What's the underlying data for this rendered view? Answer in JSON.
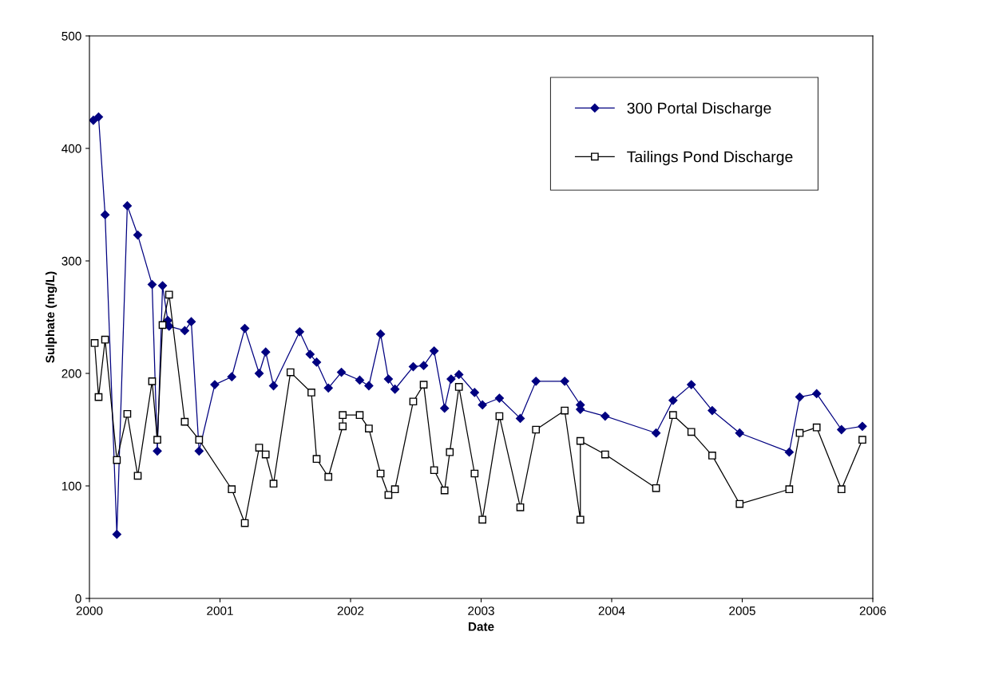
{
  "chart_data": {
    "type": "line",
    "xlabel": "Date",
    "ylabel": "Sulphate (mg/L)",
    "xlim": [
      2000,
      2006
    ],
    "xticks": [
      2000,
      2001,
      2002,
      2003,
      2004,
      2005,
      2006
    ],
    "ylim": [
      0,
      500
    ],
    "yticks": [
      0,
      100,
      200,
      300,
      400,
      500
    ],
    "grid": false,
    "legend": "top right",
    "series": [
      {
        "name": "300 Portal Discharge",
        "color": "#000080",
        "marker": "diamond",
        "x": [
          2000.03,
          2000.07,
          2000.12,
          2000.21,
          2000.29,
          2000.37,
          2000.48,
          2000.52,
          2000.56,
          2000.6,
          2000.61,
          2000.73,
          2000.78,
          2000.84,
          2000.96,
          2001.09,
          2001.19,
          2001.3,
          2001.35,
          2001.41,
          2001.61,
          2001.69,
          2001.74,
          2001.83,
          2001.93,
          2002.07,
          2002.14,
          2002.23,
          2002.29,
          2002.34,
          2002.48,
          2002.56,
          2002.64,
          2002.72,
          2002.77,
          2002.83,
          2002.95,
          2003.01,
          2003.14,
          2003.3,
          2003.42,
          2003.64,
          2003.76,
          2003.76,
          2003.95,
          2004.34,
          2004.47,
          2004.61,
          2004.77,
          2004.98,
          2005.36,
          2005.44,
          2005.57,
          2005.76,
          2005.92
        ],
        "values": [
          425,
          428,
          341,
          57,
          349,
          323,
          279,
          131,
          278,
          247,
          242,
          238,
          246,
          131,
          190,
          197,
          240,
          200,
          219,
          189,
          237,
          217,
          210,
          187,
          201,
          194,
          189,
          235,
          195,
          186,
          206,
          207,
          220,
          169,
          195,
          199,
          183,
          172,
          178,
          160,
          193,
          193,
          172,
          168,
          162,
          147,
          176,
          190,
          167,
          147,
          130,
          179,
          182,
          150,
          153
        ]
      },
      {
        "name": "Tailings Pond Discharge",
        "color": "#000000",
        "marker": "square",
        "x": [
          2000.04,
          2000.07,
          2000.12,
          2000.21,
          2000.29,
          2000.37,
          2000.48,
          2000.52,
          2000.56,
          2000.61,
          2000.73,
          2000.84,
          2001.09,
          2001.19,
          2001.3,
          2001.35,
          2001.41,
          2001.54,
          2001.7,
          2001.74,
          2001.83,
          2001.94,
          2001.94,
          2002.07,
          2002.14,
          2002.23,
          2002.29,
          2002.34,
          2002.48,
          2002.56,
          2002.64,
          2002.72,
          2002.76,
          2002.83,
          2002.95,
          2003.01,
          2003.14,
          2003.3,
          2003.42,
          2003.64,
          2003.76,
          2003.76,
          2003.95,
          2004.34,
          2004.47,
          2004.61,
          2004.77,
          2004.98,
          2005.36,
          2005.44,
          2005.57,
          2005.76,
          2005.92
        ],
        "values": [
          227,
          179,
          230,
          123,
          164,
          109,
          193,
          141,
          243,
          270,
          157,
          141,
          97,
          67,
          134,
          128,
          102,
          201,
          183,
          124,
          108,
          153,
          163,
          163,
          151,
          111,
          92,
          97,
          175,
          190,
          114,
          96,
          130,
          188,
          111,
          70,
          162,
          81,
          150,
          167,
          70,
          140,
          128,
          98,
          163,
          148,
          127,
          84,
          97,
          147,
          152,
          97,
          141
        ]
      }
    ]
  }
}
